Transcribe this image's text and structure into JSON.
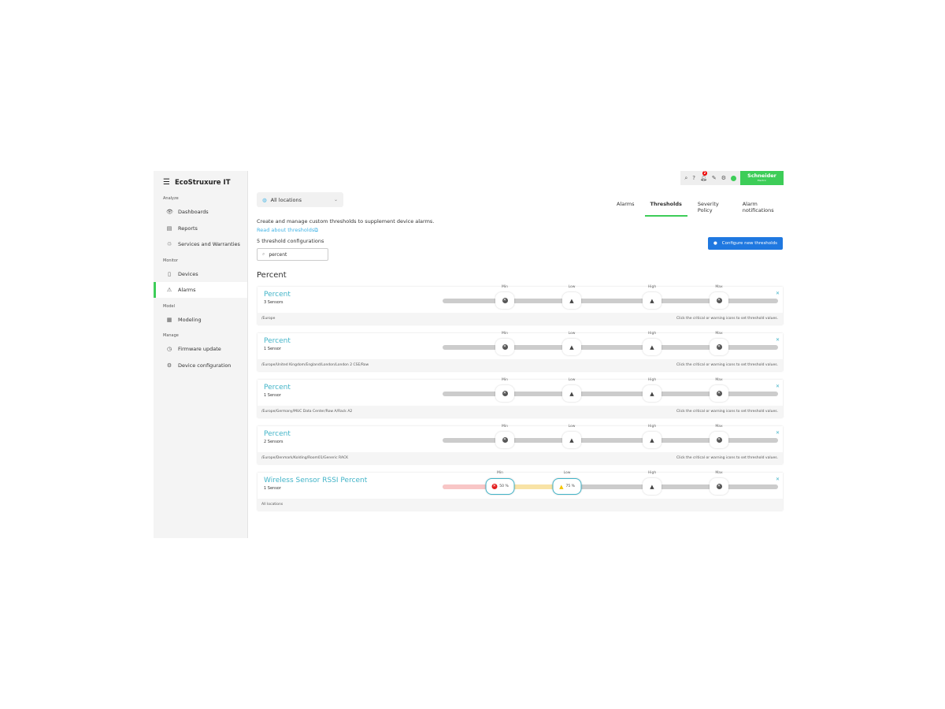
{
  "app": {
    "brand": "EcoStruxure IT"
  },
  "sidebar": {
    "sections": [
      {
        "label": "Analyze",
        "items": [
          {
            "label": "Dashboards",
            "icon": "eye-icon"
          },
          {
            "label": "Reports",
            "icon": "report-icon"
          },
          {
            "label": "Services and Warranties",
            "icon": "services-icon"
          }
        ]
      },
      {
        "label": "Monitor",
        "items": [
          {
            "label": "Devices",
            "icon": "device-icon"
          },
          {
            "label": "Alarms",
            "icon": "alarm-icon",
            "active": true
          }
        ]
      },
      {
        "label": "Model",
        "items": [
          {
            "label": "Modeling",
            "icon": "modeling-icon"
          }
        ]
      },
      {
        "label": "Manage",
        "items": [
          {
            "label": "Firmware update",
            "icon": "firmware-icon"
          },
          {
            "label": "Device configuration",
            "icon": "config-icon"
          }
        ]
      }
    ]
  },
  "topbar": {
    "notification_count": "2",
    "logo": "Schneider Electric"
  },
  "location": {
    "selected": "All locations"
  },
  "tabs": [
    {
      "label": "Alarms"
    },
    {
      "label": "Thresholds",
      "selected": true
    },
    {
      "label": "Severity Policy"
    },
    {
      "label": "Alarm notifications"
    }
  ],
  "main": {
    "description": "Create and manage custom thresholds to supplement device alarms.",
    "link": "Read about thresholds",
    "count": "5 threshold configurations",
    "search_value": "percent",
    "configure_button": "Configure new thresholds",
    "group_title": "Percent",
    "hint": "Click the critical or warning icons to set threshold values."
  },
  "markers": [
    "Min",
    "Low",
    "High",
    "Max"
  ],
  "cards": [
    {
      "name": "Percent",
      "sensors": "3 Sensors",
      "path": "/Europe",
      "hint": true
    },
    {
      "name": "Percent",
      "sensors": "1 Sensor",
      "path": "/Europe/United Kingdom/England/London/London 2 CSE/Row",
      "hint": true
    },
    {
      "name": "Percent",
      "sensors": "1 Sensor",
      "path": "/Europe/Germany/MUC Data Center/Row A/Rack A2",
      "hint": true
    },
    {
      "name": "Percent",
      "sensors": "2 Sensors",
      "path": "/Europe/Denmark/Kolding/Room01/Generic RACK",
      "hint": true
    },
    {
      "name": "Wireless Sensor RSSI Percent",
      "sensors": "1 Sensor",
      "path": "All locations",
      "hint": false,
      "min_value": "50 %",
      "low_value": "75 %"
    }
  ],
  "colors": {
    "accent": "#3dcd58",
    "link": "#42b4e6",
    "critical": "#e31d1d",
    "warning": "#f5c400",
    "button": "#1f78e0"
  }
}
